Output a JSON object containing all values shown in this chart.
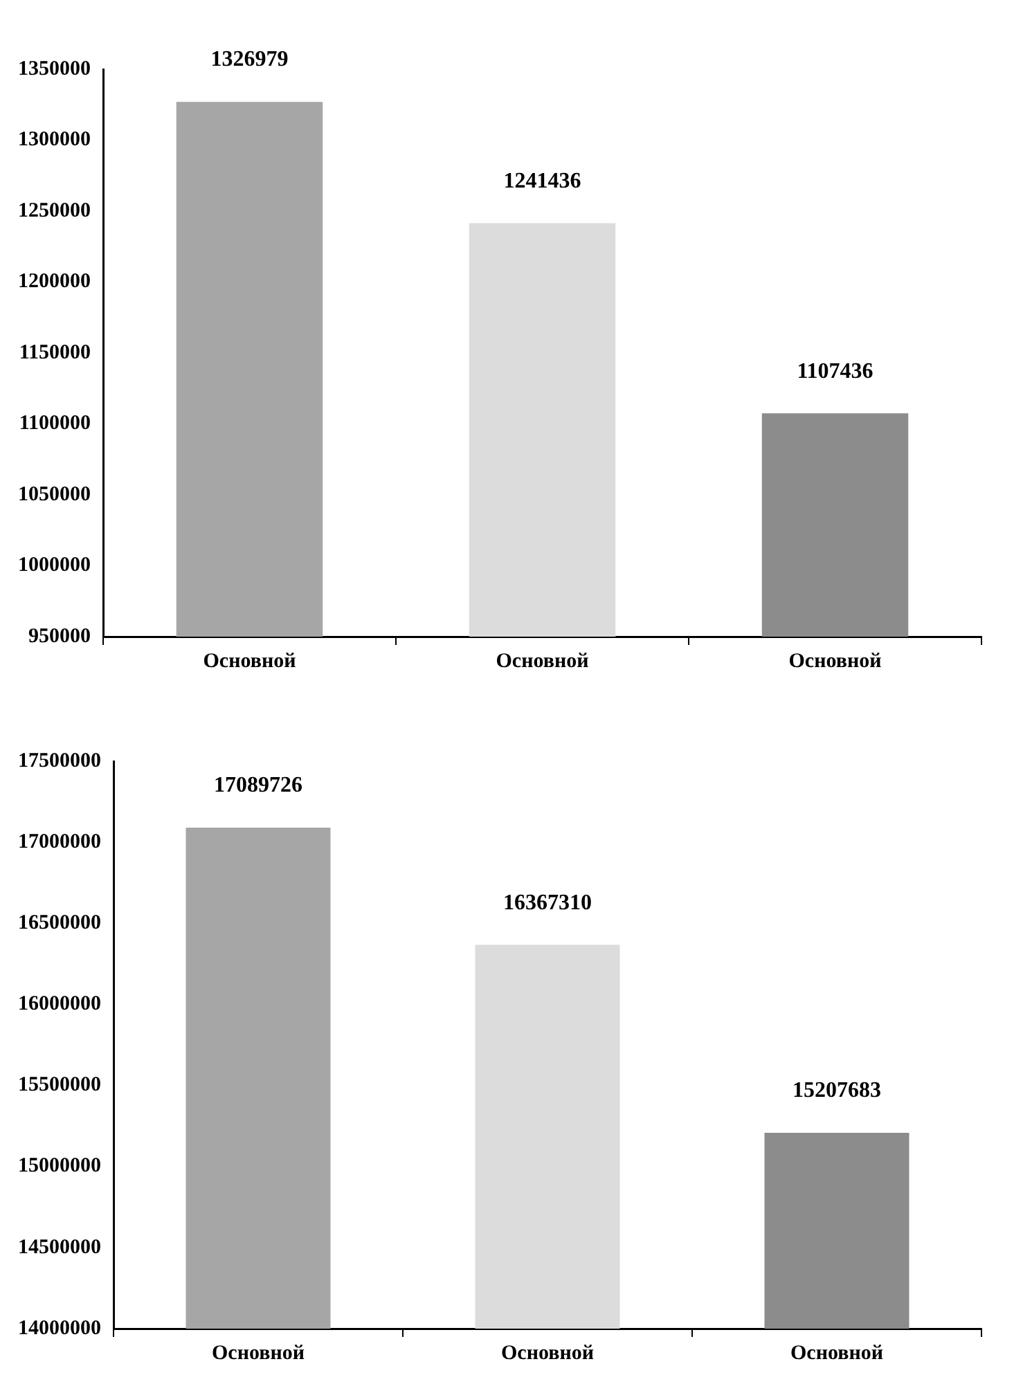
{
  "chart_data": [
    {
      "type": "bar",
      "categories": [
        "Основной",
        "Основной",
        "Основной"
      ],
      "values": [
        1326979,
        1241436,
        1107436
      ],
      "colors": [
        "#a6a6a6",
        "#dcdcdc",
        "#8c8c8c"
      ],
      "ylim": [
        950000,
        1350000
      ],
      "yticks": [
        950000,
        1000000,
        1050000,
        1100000,
        1150000,
        1200000,
        1250000,
        1300000,
        1350000
      ],
      "grid": false,
      "legend": false,
      "data_labels": true
    },
    {
      "type": "bar",
      "categories": [
        "Основной",
        "Основной",
        "Основной"
      ],
      "values": [
        17089726,
        16367310,
        15207683
      ],
      "colors": [
        "#a6a6a6",
        "#dcdcdc",
        "#8c8c8c"
      ],
      "ylim": [
        14000000,
        17500000
      ],
      "yticks": [
        14000000,
        14500000,
        15000000,
        15500000,
        16000000,
        16500000,
        17000000,
        17500000
      ],
      "grid": false,
      "legend": false,
      "data_labels": true
    }
  ]
}
